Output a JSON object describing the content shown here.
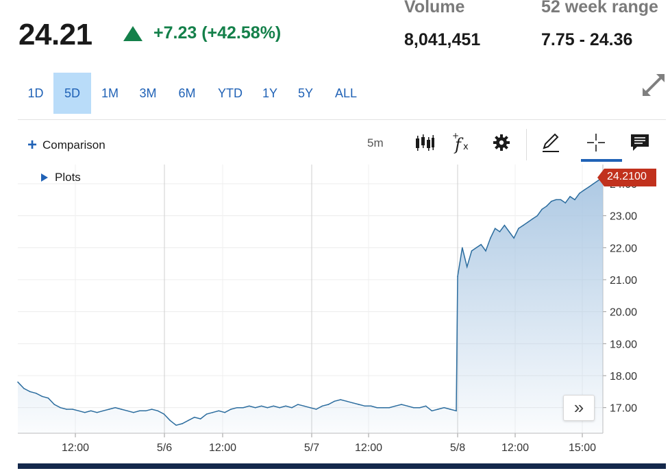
{
  "quote": {
    "price": "24.21",
    "change": "+7.23 (+42.58%)",
    "direction": "up",
    "up_color": "#14804a"
  },
  "stats": {
    "volume_label": "Volume",
    "volume_value": "8,041,451",
    "range_label": "52 week range",
    "range_value": "7.75 - 24.36"
  },
  "range_tabs": [
    {
      "label": "1D",
      "active": false
    },
    {
      "label": "5D",
      "active": true
    },
    {
      "label": "1M",
      "active": false
    },
    {
      "label": "3M",
      "active": false
    },
    {
      "label": "6M",
      "active": false
    },
    {
      "label": "YTD",
      "active": false
    },
    {
      "label": "1Y",
      "active": false
    },
    {
      "label": "5Y",
      "active": false
    },
    {
      "label": "ALL",
      "active": false
    }
  ],
  "toolbar": {
    "comparison_label": "Comparison",
    "interval_label": "5m",
    "icons": [
      "candlestick-icon",
      "function-icon",
      "gear-icon",
      "pencil-icon",
      "crosshair-icon",
      "comment-icon"
    ],
    "active_tool": "crosshair-icon"
  },
  "plots_label": "Plots",
  "scroll_label": "»",
  "accent_color": "#2062b6",
  "last_price_tag": "24.2100",
  "last_price_tag_color": "#c1311d",
  "chart_data": {
    "type": "area",
    "title": "",
    "xlabel": "",
    "ylabel": "",
    "y_ticks": [
      "17.00",
      "18.00",
      "19.00",
      "20.00",
      "21.00",
      "22.00",
      "23.00",
      "24.00"
    ],
    "ylim": [
      16.2,
      24.6
    ],
    "x_ticks": [
      "12:00",
      "5/6",
      "12:00",
      "5/7",
      "12:00",
      "5/8",
      "12:00",
      "15:00"
    ],
    "line_color": "#2b6c9e",
    "fill_color": "#a9c6e2",
    "series": [
      {
        "values": [
          17.8,
          17.6,
          17.5,
          17.45,
          17.35,
          17.3,
          17.1,
          17.0,
          16.95,
          16.95,
          16.9,
          16.85,
          16.9,
          16.85,
          16.9,
          16.95,
          17.0,
          16.95,
          16.9,
          16.85,
          16.9,
          16.9,
          16.95,
          16.9,
          16.8,
          16.6,
          16.45,
          16.5,
          16.6,
          16.7,
          16.65,
          16.8,
          16.85,
          16.9,
          16.85,
          16.95,
          17.0,
          17.0,
          17.05,
          17.0,
          17.05,
          17.0,
          17.05,
          17.0,
          17.05,
          17.0,
          17.1,
          17.05,
          17.0,
          16.95,
          17.05,
          17.1,
          17.2,
          17.25,
          17.2,
          17.15,
          17.1,
          17.05,
          17.05,
          17.0,
          17.0,
          17.0,
          17.05,
          17.1,
          17.05,
          17.0,
          17.0,
          17.05,
          16.9,
          16.95,
          17.0,
          16.95,
          16.9,
          21.1,
          22.0,
          21.4,
          21.9,
          22.0,
          22.1,
          21.9,
          22.3,
          22.6,
          22.5,
          22.7,
          22.5,
          22.3,
          22.6,
          22.7,
          22.8,
          22.9,
          23.0,
          23.2,
          23.3,
          23.45,
          23.5,
          23.5,
          23.4,
          23.6,
          23.5,
          23.7,
          23.8,
          23.9,
          24.0,
          24.1,
          24.21
        ]
      }
    ],
    "session_break_index": 72
  }
}
